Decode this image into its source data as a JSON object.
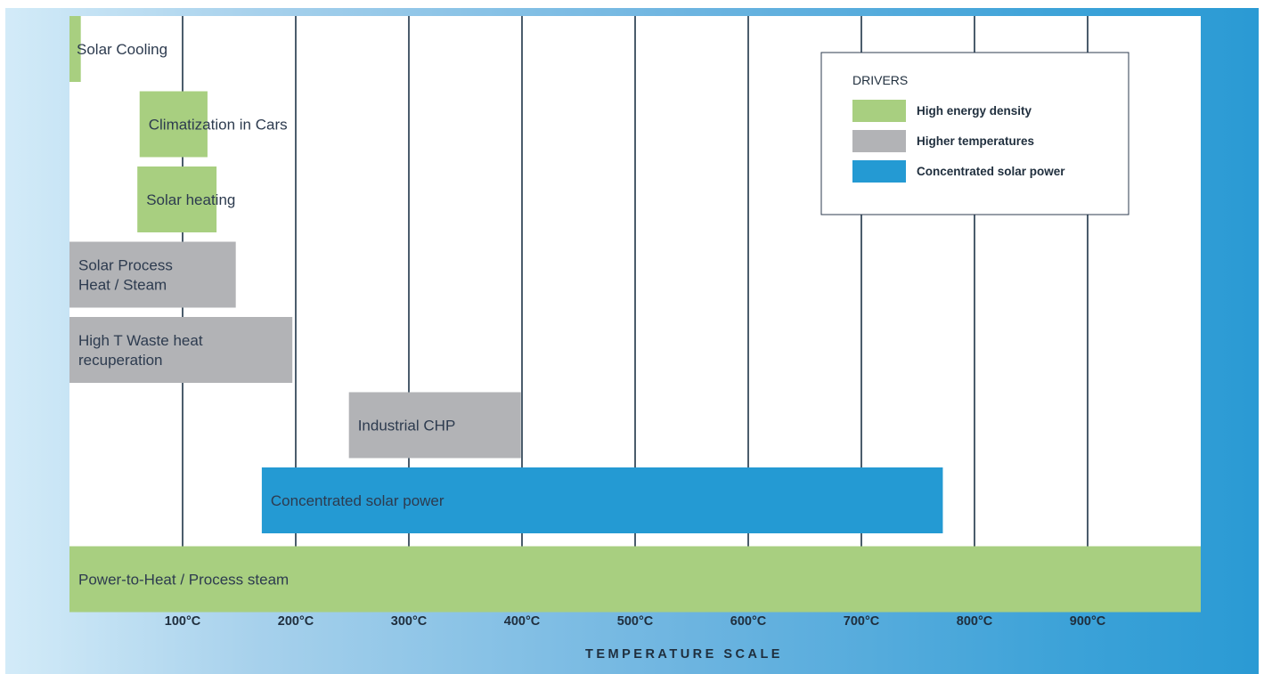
{
  "chart_data": {
    "type": "bar",
    "orientation": "horizontal-range",
    "xlabel": "TEMPERATURE SCALE",
    "x_ticks": [
      "100°C",
      "200°C",
      "300°C",
      "400°C",
      "500°C",
      "600°C",
      "700°C",
      "800°C",
      "900°C"
    ],
    "xlim": [
      0,
      1000
    ],
    "grid": true,
    "legend": {
      "title": "DRIVERS",
      "placement": "top-right",
      "entries": [
        {
          "label": "High energy density",
          "color": "#a8cf80"
        },
        {
          "label": "Higher temperatures",
          "color": "#b2b3b6"
        },
        {
          "label": "Concentrated solar power",
          "color": "#249ad3"
        }
      ]
    },
    "series": [
      {
        "label": "Solar Cooling",
        "driver": 0,
        "start": 0,
        "end": 10
      },
      {
        "label": "Climatization in Cars",
        "driver": 0,
        "start": 62,
        "end": 122
      },
      {
        "label": "Solar heating",
        "driver": 0,
        "start": 60,
        "end": 130
      },
      {
        "label": "Solar Process Heat / Steam",
        "driver": 1,
        "start": 0,
        "end": 147
      },
      {
        "label": "High T Waste heat recuperation",
        "driver": 1,
        "start": 0,
        "end": 197
      },
      {
        "label": "Industrial CHP",
        "driver": 1,
        "start": 247,
        "end": 399
      },
      {
        "label": "Concentrated solar power",
        "driver": 2,
        "start": 170,
        "end": 772
      },
      {
        "label": "Power-to-Heat / Process steam",
        "driver": 0,
        "start": 0,
        "end": 1000
      }
    ]
  }
}
